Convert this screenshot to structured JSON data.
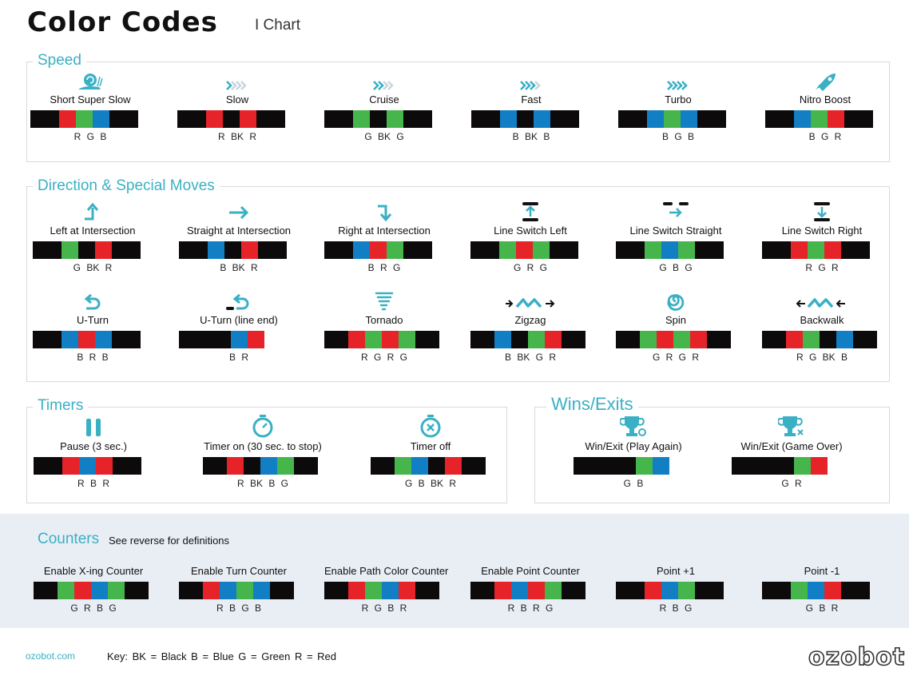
{
  "header": {
    "title": "Color Codes",
    "subtitle": "I Chart"
  },
  "colors": {
    "R": "#e52329",
    "G": "#46b64c",
    "B": "#127ec3",
    "BK": "#0d0a0b",
    "accent": "#3ab0c4"
  },
  "speed": {
    "label": "Speed",
    "items": [
      {
        "name": "Short Super Slow",
        "icon": "snail-icon",
        "codes": [
          "R",
          "G",
          "B"
        ],
        "letters": "R G B"
      },
      {
        "name": "Slow",
        "icon": "chevrons-1-icon",
        "codes": [
          "R",
          "BK",
          "R"
        ],
        "letters": "R BK R"
      },
      {
        "name": "Cruise",
        "icon": "chevrons-2-icon",
        "codes": [
          "G",
          "BK",
          "G"
        ],
        "letters": "G BK G"
      },
      {
        "name": "Fast",
        "icon": "chevrons-3-icon",
        "codes": [
          "B",
          "BK",
          "B"
        ],
        "letters": "B BK B"
      },
      {
        "name": "Turbo",
        "icon": "chevrons-4-icon",
        "codes": [
          "B",
          "G",
          "B"
        ],
        "letters": "B G B"
      },
      {
        "name": "Nitro Boost",
        "icon": "rocket-icon",
        "codes": [
          "B",
          "G",
          "R"
        ],
        "letters": "B G R"
      }
    ]
  },
  "direction": {
    "label": "Direction & Special Moves",
    "items": [
      {
        "name": "Left at Intersection",
        "icon": "turn-left-icon",
        "codes": [
          "G",
          "BK",
          "R"
        ],
        "letters": "G BK R"
      },
      {
        "name": "Straight at Intersection",
        "icon": "arrow-right-icon",
        "codes": [
          "B",
          "BK",
          "R"
        ],
        "letters": "B BK R"
      },
      {
        "name": "Right at Intersection",
        "icon": "turn-right-icon",
        "codes": [
          "B",
          "R",
          "G"
        ],
        "letters": "B R G"
      },
      {
        "name": "Line Switch Left",
        "icon": "line-switch-left-icon",
        "codes": [
          "G",
          "R",
          "G"
        ],
        "letters": "G R G"
      },
      {
        "name": "Line Switch Straight",
        "icon": "line-switch-straight-icon",
        "codes": [
          "G",
          "B",
          "G"
        ],
        "letters": "G B G"
      },
      {
        "name": "Line Switch Right",
        "icon": "line-switch-right-icon",
        "codes": [
          "R",
          "G",
          "R"
        ],
        "letters": "R G R"
      },
      {
        "name": "U-Turn",
        "icon": "u-turn-icon",
        "codes": [
          "B",
          "R",
          "B"
        ],
        "letters": "B R B"
      },
      {
        "name": "U-Turn (line end)",
        "icon": "u-turn-line-end-icon",
        "codes": [
          "B",
          "R"
        ],
        "letters": "B R"
      },
      {
        "name": "Tornado",
        "icon": "tornado-icon",
        "codes": [
          "R",
          "G",
          "R",
          "G"
        ],
        "letters": "R G R G"
      },
      {
        "name": "Zigzag",
        "icon": "zigzag-icon",
        "codes": [
          "B",
          "BK",
          "G",
          "R"
        ],
        "letters": "B BK G R"
      },
      {
        "name": "Spin",
        "icon": "spin-icon",
        "codes": [
          "G",
          "R",
          "G",
          "R"
        ],
        "letters": "G R G R"
      },
      {
        "name": "Backwalk",
        "icon": "backwalk-icon",
        "codes": [
          "R",
          "G",
          "BK",
          "B"
        ],
        "letters": "R G BK B"
      }
    ]
  },
  "timers": {
    "label": "Timers",
    "items": [
      {
        "name": "Pause (3 sec.)",
        "icon": "pause-icon",
        "codes": [
          "R",
          "B",
          "R"
        ],
        "letters": "R B R"
      },
      {
        "name": "Timer on (30 sec. to stop)",
        "icon": "stopwatch-icon",
        "codes": [
          "R",
          "BK",
          "B",
          "G"
        ],
        "letters": "R BK B G"
      },
      {
        "name": "Timer off",
        "icon": "stopwatch-off-icon",
        "codes": [
          "G",
          "B",
          "BK",
          "R"
        ],
        "letters": "G B BK R"
      }
    ]
  },
  "wins": {
    "label": "Wins/Exits",
    "items": [
      {
        "name": "Win/Exit (Play Again)",
        "icon": "trophy-replay-icon",
        "codes": [
          "G",
          "B"
        ],
        "letters": "G B"
      },
      {
        "name": "Win/Exit (Game Over)",
        "icon": "trophy-x-icon",
        "codes": [
          "G",
          "R"
        ],
        "letters": "G R"
      }
    ]
  },
  "counters": {
    "label": "Counters",
    "note": "See reverse for definitions",
    "items": [
      {
        "name": "Enable X-ing  Counter",
        "codes": [
          "G",
          "R",
          "B",
          "G"
        ],
        "letters": "G R B G"
      },
      {
        "name": "Enable Turn Counter",
        "codes": [
          "R",
          "B",
          "G",
          "B"
        ],
        "letters": "R B G B"
      },
      {
        "name": "Enable Path Color Counter",
        "codes": [
          "R",
          "G",
          "B",
          "R"
        ],
        "letters": "R G B R"
      },
      {
        "name": "Enable Point Counter",
        "codes": [
          "R",
          "B",
          "R",
          "G"
        ],
        "letters": "R B R G"
      },
      {
        "name": "Point +1",
        "codes": [
          "R",
          "B",
          "G"
        ],
        "letters": "R B G"
      },
      {
        "name": "Point -1",
        "codes": [
          "G",
          "B",
          "R"
        ],
        "letters": "G B R"
      }
    ]
  },
  "footer": {
    "url": "ozobot.com",
    "key": "Key:  BK = Black     B = Blue     G = Green     R = Red",
    "logo": "ozobot"
  }
}
